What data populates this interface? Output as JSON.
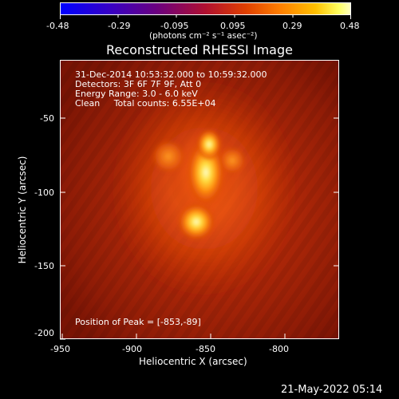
{
  "colorbar": {
    "tick_labels": [
      "-0.48",
      "-0.29",
      "-0.095",
      "0.095",
      "0.29",
      "0.48"
    ],
    "unit_label": "(photons cm⁻² s⁻¹ asec⁻²)"
  },
  "plot": {
    "title": "Reconstructed RHESSI Image",
    "info_lines": [
      "31-Dec-2014 10:53:32.000 to 10:59:32.000",
      "Detectors: 3F 6F 7F 9F, Att 0",
      "Energy Range: 3.0 - 6.0 keV",
      "Clean     Total counts: 6.55E+04"
    ],
    "peak_label": "Position of Peak = [-853,-89]",
    "x_axis": {
      "label": "Heliocentric X (arcsec)",
      "ticks": [
        "-950",
        "-900",
        "-850",
        "-800"
      ]
    },
    "y_axis": {
      "label": "Heliocentric Y (arcsec)",
      "ticks": [
        "-50",
        "-100",
        "-150",
        "-200"
      ]
    }
  },
  "footer": {
    "timestamp": "21-May-2022 05:14"
  },
  "colors": {
    "background": "#000000",
    "image_base": "#a01808",
    "peak": "#ffffc0"
  }
}
